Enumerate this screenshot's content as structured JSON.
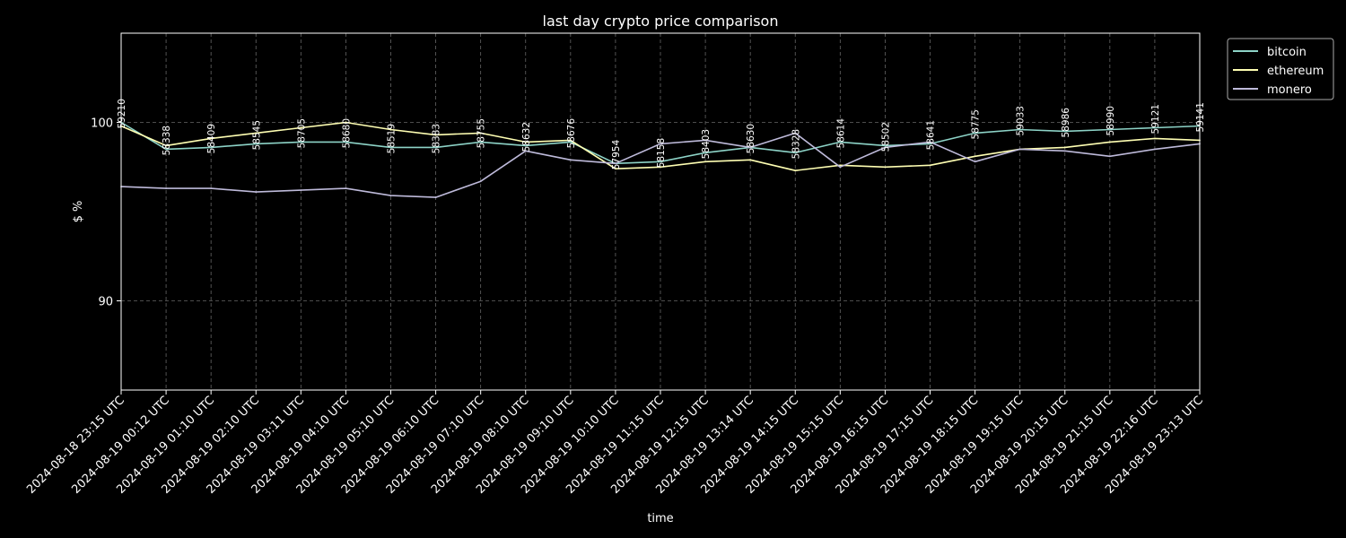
{
  "chart_data": {
    "type": "line",
    "title": "last day crypto price comparison",
    "xlabel": "time",
    "ylabel": "$ %",
    "ylim": [
      85,
      105
    ],
    "yticks": [
      90,
      100
    ],
    "grid": true,
    "legend_position": "top-right-outside",
    "x": [
      "2024-08-18 23:15 UTC",
      "2024-08-19 00:12 UTC",
      "2024-08-19 01:10 UTC",
      "2024-08-19 02:10 UTC",
      "2024-08-19 03:11 UTC",
      "2024-08-19 04:10 UTC",
      "2024-08-19 05:10 UTC",
      "2024-08-19 06:10 UTC",
      "2024-08-19 07:10 UTC",
      "2024-08-19 08:10 UTC",
      "2024-08-19 09:10 UTC",
      "2024-08-19 10:10 UTC",
      "2024-08-19 11:15 UTC",
      "2024-08-19 12:15 UTC",
      "2024-08-19 13:14 UTC",
      "2024-08-19 14:15 UTC",
      "2024-08-19 15:15 UTC",
      "2024-08-19 16:15 UTC",
      "2024-08-19 17:15 UTC",
      "2024-08-19 18:15 UTC",
      "2024-08-19 19:15 UTC",
      "2024-08-19 20:15 UTC",
      "2024-08-19 21:15 UTC",
      "2024-08-19 22:16 UTC",
      "2024-08-19 23:13 UTC"
    ],
    "series": [
      {
        "name": "bitcoin",
        "color": "#8dd3c7",
        "values": [
          100.0,
          98.5,
          98.6,
          98.8,
          98.9,
          98.9,
          98.6,
          98.6,
          98.9,
          98.7,
          98.9,
          97.7,
          97.8,
          98.3,
          98.6,
          98.3,
          98.9,
          98.7,
          98.8,
          99.4,
          99.6,
          99.5,
          99.6,
          99.7,
          99.8
        ]
      },
      {
        "name": "ethereum",
        "color": "#ffffb3",
        "values": [
          99.8,
          98.7,
          99.1,
          99.4,
          99.7,
          100.0,
          99.6,
          99.3,
          99.4,
          98.9,
          99.0,
          97.4,
          97.5,
          97.8,
          97.9,
          97.3,
          97.6,
          97.5,
          97.6,
          98.1,
          98.5,
          98.6,
          98.9,
          99.1,
          99.0
        ]
      },
      {
        "name": "monero",
        "color": "#bebada",
        "values": [
          96.4,
          96.3,
          96.3,
          96.1,
          96.2,
          96.3,
          95.9,
          95.8,
          96.7,
          98.4,
          97.9,
          97.7,
          98.8,
          99.0,
          98.6,
          99.4,
          97.5,
          98.6,
          98.9,
          97.8,
          98.5,
          98.4,
          98.1,
          98.5,
          98.8
        ]
      }
    ],
    "annotations": [
      "59210",
      "58338",
      "58409",
      "58545",
      "58705",
      "58680",
      "58519",
      "58383",
      "58755",
      "58632",
      "58676",
      "57954",
      "58158",
      "58403",
      "58630",
      "58328",
      "58614",
      "58502",
      "58641",
      "58775",
      "59033",
      "58986",
      "58990",
      "59121",
      "59141"
    ]
  }
}
